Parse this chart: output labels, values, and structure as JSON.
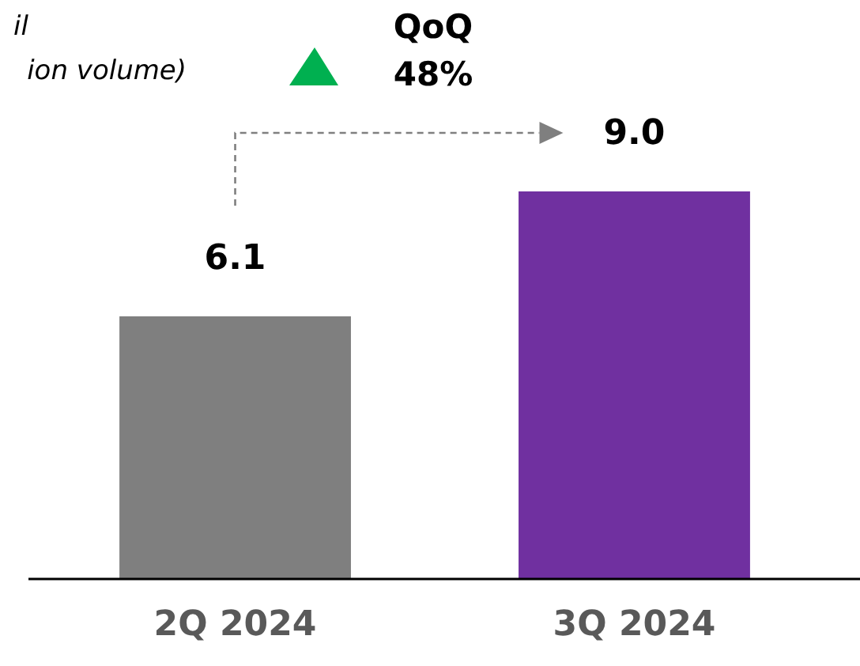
{
  "chart_data": {
    "type": "bar",
    "title": "il",
    "subtitle": "ion volume)",
    "categories": [
      "2Q 2024",
      "3Q 2024"
    ],
    "values": [
      6.1,
      9.0
    ],
    "colors": [
      "#7f7f7f",
      "#7030a0"
    ],
    "value_labels": [
      "6.1",
      "9.0"
    ],
    "annotations": [
      "QoQ\n48%"
    ]
  }
}
